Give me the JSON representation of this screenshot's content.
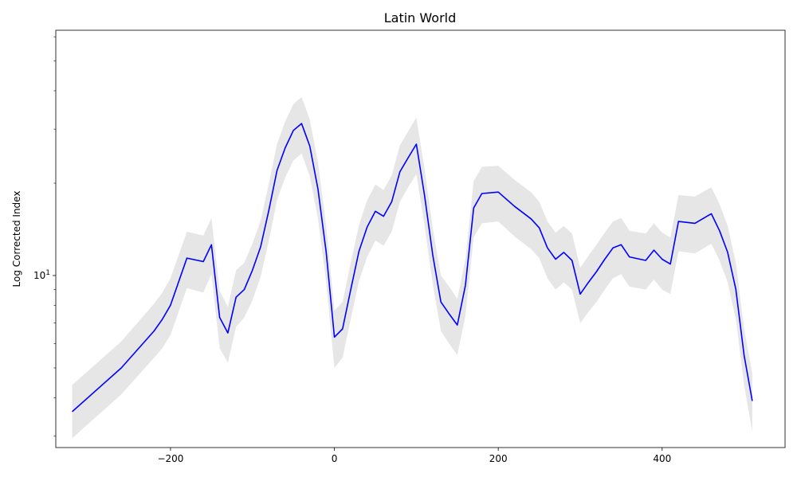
{
  "chart_data": {
    "type": "line",
    "title": "Latin World",
    "xlabel": "",
    "ylabel": "Log Corrected Index",
    "x_ticks": [
      -200,
      0,
      200,
      400
    ],
    "y_major_ticks": [
      {
        "value": 10,
        "label": "10^1"
      }
    ],
    "y_minor_ticks": [
      3,
      4,
      5,
      6,
      7,
      8,
      9,
      20,
      30,
      40,
      50,
      60
    ],
    "x_range": [
      -340,
      550
    ],
    "y_range": [
      2.75,
      63
    ],
    "y_scale": "log",
    "grid": false,
    "legend": "none",
    "colors": {
      "line": "#0000ff",
      "band": "#e6e6e6"
    },
    "series": [
      {
        "x": [
          -320,
          -260,
          -220,
          -210,
          -200,
          -180,
          -160,
          -150,
          -140,
          -130,
          -120,
          -110,
          -100,
          -90,
          -80,
          -70,
          -60,
          -50,
          -40,
          -30,
          -20,
          -10,
          0,
          10,
          20,
          30,
          40,
          50,
          60,
          70,
          80,
          90,
          100,
          110,
          120,
          130,
          140,
          150,
          160,
          170,
          180,
          200,
          220,
          240,
          250,
          260,
          270,
          280,
          290,
          300,
          310,
          320,
          330,
          340,
          350,
          360,
          380,
          390,
          400,
          410,
          420,
          440,
          460,
          470,
          480,
          490,
          500,
          510
        ],
        "y": [
          3.6,
          5.0,
          6.6,
          7.2,
          8.0,
          11.4,
          11.1,
          12.6,
          7.3,
          6.5,
          8.5,
          9.0,
          10.4,
          12.4,
          16.3,
          22.0,
          26.1,
          29.7,
          31.3,
          26.4,
          19.1,
          11.9,
          6.3,
          6.7,
          9.0,
          12.0,
          14.4,
          16.2,
          15.6,
          17.4,
          21.8,
          24.2,
          26.8,
          18.3,
          11.7,
          8.2,
          7.5,
          6.9,
          9.3,
          16.6,
          18.5,
          18.7,
          16.8,
          15.3,
          14.3,
          12.3,
          11.3,
          11.9,
          11.2,
          8.7,
          9.5,
          10.3,
          11.3,
          12.3,
          12.6,
          11.5,
          11.2,
          12.1,
          11.3,
          10.9,
          15.0,
          14.8,
          15.9,
          14.0,
          11.9,
          9.0,
          5.5,
          3.9
        ],
        "lower": [
          2.95,
          4.1,
          5.4,
          5.8,
          6.4,
          9.1,
          8.8,
          10.1,
          5.8,
          5.2,
          6.8,
          7.3,
          8.3,
          9.9,
          13.0,
          17.6,
          20.9,
          23.7,
          25.0,
          21.1,
          15.3,
          9.5,
          5.0,
          5.4,
          7.2,
          9.6,
          11.5,
          13.0,
          12.5,
          13.9,
          17.4,
          19.4,
          21.4,
          14.6,
          9.4,
          6.6,
          6.0,
          5.5,
          7.4,
          13.3,
          14.8,
          15.0,
          13.4,
          12.2,
          11.4,
          9.8,
          9.0,
          9.5,
          9.0,
          7.0,
          7.6,
          8.2,
          9.0,
          9.8,
          10.1,
          9.2,
          9.0,
          9.7,
          9.0,
          8.7,
          12.0,
          11.8,
          12.7,
          11.2,
          9.5,
          7.2,
          4.4,
          3.1
        ],
        "upper": [
          4.4,
          6.1,
          8.1,
          8.8,
          9.8,
          13.9,
          13.5,
          15.4,
          8.9,
          7.9,
          10.4,
          11.0,
          12.7,
          15.1,
          19.9,
          26.8,
          31.8,
          36.2,
          38.2,
          32.2,
          23.3,
          14.5,
          7.7,
          8.2,
          11.0,
          14.6,
          17.6,
          19.8,
          19.0,
          21.2,
          26.6,
          29.5,
          32.7,
          22.3,
          14.3,
          10.0,
          9.2,
          8.4,
          11.3,
          20.3,
          22.6,
          22.8,
          20.5,
          18.7,
          17.4,
          15.0,
          13.8,
          14.5,
          13.7,
          10.6,
          11.6,
          12.6,
          13.8,
          15.0,
          15.4,
          14.0,
          13.7,
          14.8,
          13.8,
          13.3,
          18.3,
          18.1,
          19.4,
          17.1,
          14.5,
          11.0,
          6.7,
          4.8
        ]
      }
    ]
  }
}
